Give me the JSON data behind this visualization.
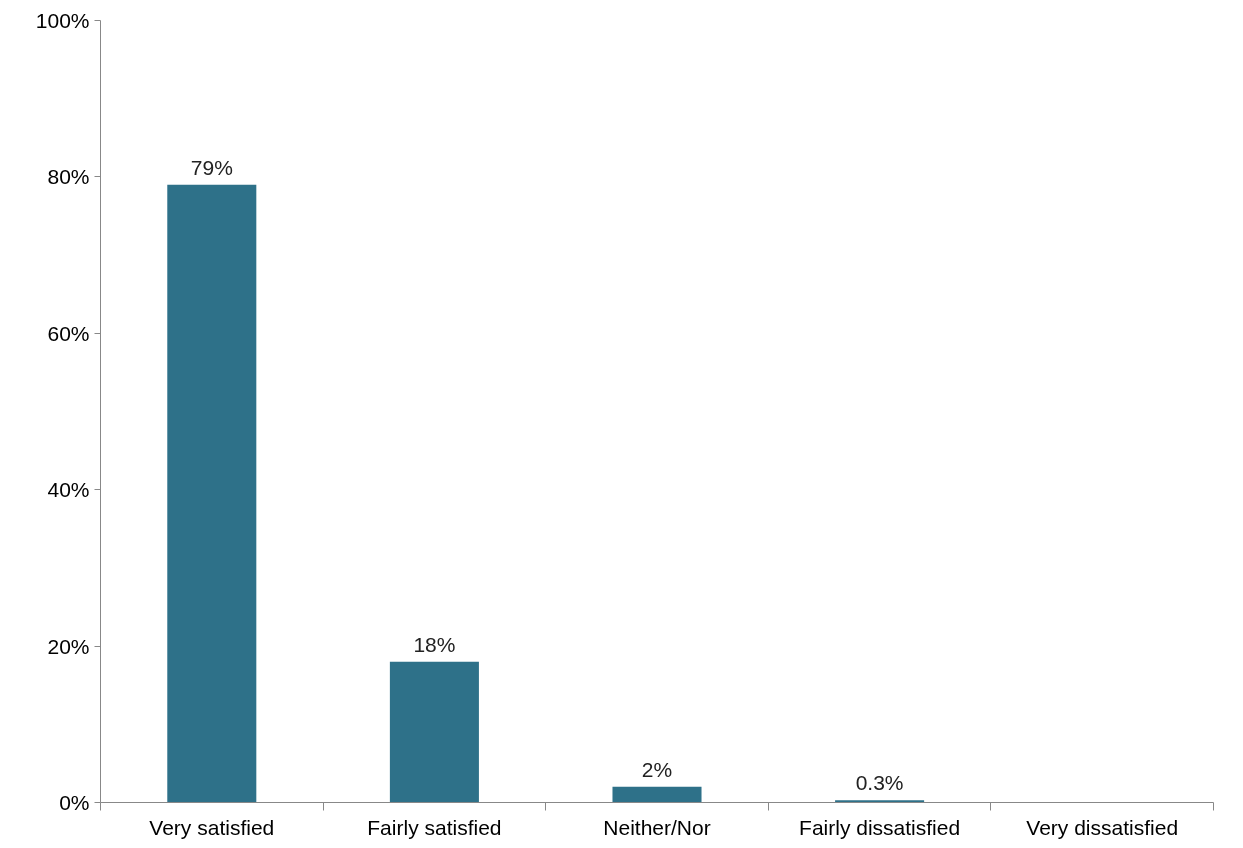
{
  "chart_data": {
    "type": "bar",
    "categories": [
      "Very satisfied",
      "Fairly satisfied",
      "Neither/Nor",
      "Fairly dissatisfied",
      "Very dissatisfied"
    ],
    "values": [
      79,
      18,
      2,
      0.3,
      0
    ],
    "value_labels": [
      "79%",
      "18%",
      "2%",
      "0.3%",
      null
    ],
    "color": "#2e7189",
    "ylim": [
      0,
      100
    ],
    "yticks": [
      {
        "value": 0,
        "label": "0%"
      },
      {
        "value": 20,
        "label": "20%"
      },
      {
        "value": 40,
        "label": "40%"
      },
      {
        "value": 60,
        "label": "60%"
      },
      {
        "value": 80,
        "label": "80%"
      },
      {
        "value": 100,
        "label": "100%"
      }
    ],
    "grid": false
  }
}
